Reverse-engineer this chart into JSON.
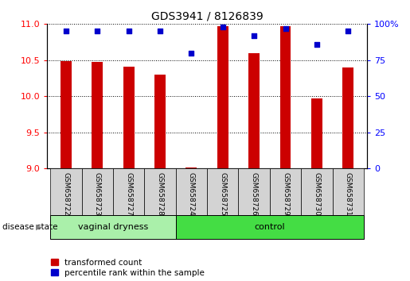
{
  "title": "GDS3941 / 8126839",
  "samples": [
    "GSM658722",
    "GSM658723",
    "GSM658727",
    "GSM658728",
    "GSM658724",
    "GSM658725",
    "GSM658726",
    "GSM658729",
    "GSM658730",
    "GSM658731"
  ],
  "transformed_count": [
    10.49,
    10.47,
    10.41,
    10.3,
    9.02,
    10.97,
    10.6,
    10.97,
    9.97,
    10.4
  ],
  "percentile_rank": [
    95,
    95,
    95,
    95,
    80,
    98,
    92,
    97,
    86,
    95
  ],
  "ylim_left": [
    9,
    11
  ],
  "ylim_right": [
    0,
    100
  ],
  "yticks_left": [
    9,
    9.5,
    10,
    10.5,
    11
  ],
  "yticks_right": [
    0,
    25,
    50,
    75,
    100
  ],
  "groups": [
    {
      "label": "vaginal dryness",
      "start": 0,
      "end": 4,
      "color": "#aaf0aa"
    },
    {
      "label": "control",
      "start": 4,
      "end": 10,
      "color": "#44dd44"
    }
  ],
  "group_label_prefix": "disease state",
  "bar_color": "#CC0000",
  "dot_color": "#0000CC",
  "bar_bottom": 9,
  "background_color": "#ffffff",
  "plot_bg_color": "#ffffff",
  "tick_label_bg": "#D3D3D3",
  "legend_items": [
    {
      "label": "transformed count",
      "color": "#CC0000"
    },
    {
      "label": "percentile rank within the sample",
      "color": "#0000CC"
    }
  ]
}
